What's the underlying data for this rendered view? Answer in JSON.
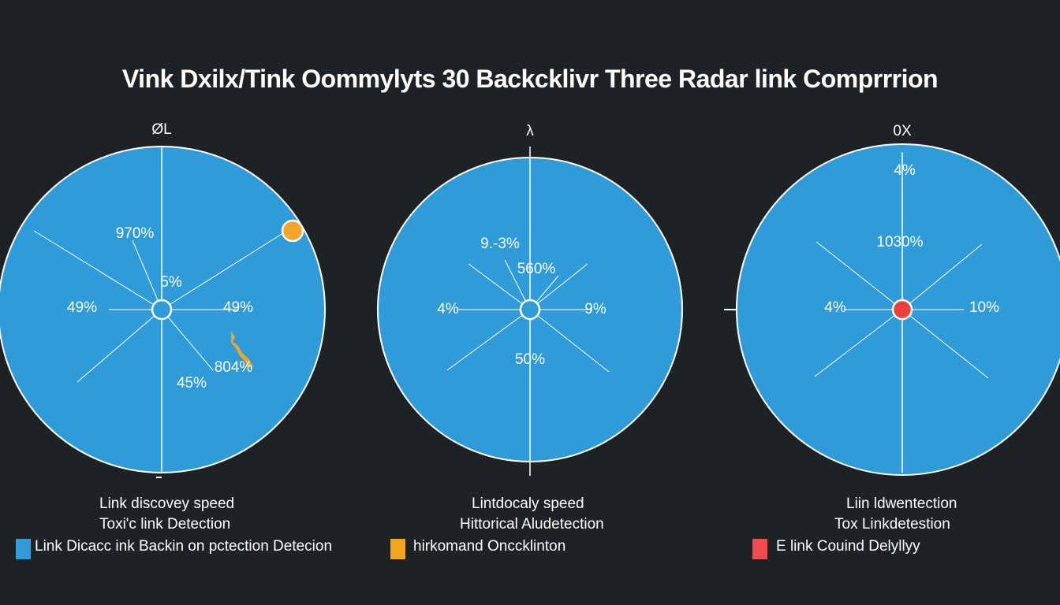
{
  "title": "Vink Dxilx/Tink Oommylyts 30 Backcklivr Three Radar link Comprrrion",
  "colors": {
    "background": "#1f2225",
    "disc": "#2f9bd8",
    "swatch_blue": "#2f9bd8",
    "swatch_orange": "#f2a51f",
    "swatch_red": "#ef4e4e",
    "marker_orange": "#f2a52b",
    "marker_red": "#ee3e3e"
  },
  "chart_data": [
    {
      "type": "radar",
      "axis_top_label": "ØL",
      "labels": [
        {
          "text": "970%"
        },
        {
          "text": "5%"
        },
        {
          "text": "49%"
        },
        {
          "text": "49%"
        },
        {
          "text": "804%"
        },
        {
          "text": "45%"
        }
      ],
      "marker_color": "#f2a52b",
      "legend": {
        "line1": "Link discovey speed",
        "line2": "Toxi'c link Detection",
        "line3": "Link Dicacc ink Backin on pctection Detecion",
        "swatch_color": "#2f9bd8"
      }
    },
    {
      "type": "radar",
      "axis_top_label": "λ",
      "labels": [
        {
          "text": "9.-3%"
        },
        {
          "text": "560%"
        },
        {
          "text": "4%"
        },
        {
          "text": "9%"
        },
        {
          "text": "50%"
        }
      ],
      "legend": {
        "line1": "Lintdocaly speed",
        "line2": "Hittorical Aludetection",
        "line3": "hirkomand Onccklinton",
        "swatch_color": "#f2a51f"
      }
    },
    {
      "type": "radar",
      "axis_top_label": "0X",
      "labels": [
        {
          "text": "4%"
        },
        {
          "text": "1030%"
        },
        {
          "text": "4%"
        },
        {
          "text": "10%"
        }
      ],
      "marker_color": "#ee3e3e",
      "legend": {
        "line1": "Liin ldwentection",
        "line2": "Tox Linkdetestion",
        "line3": "E link Couind Delyllyy",
        "swatch_color": "#ef4e4e"
      }
    }
  ]
}
